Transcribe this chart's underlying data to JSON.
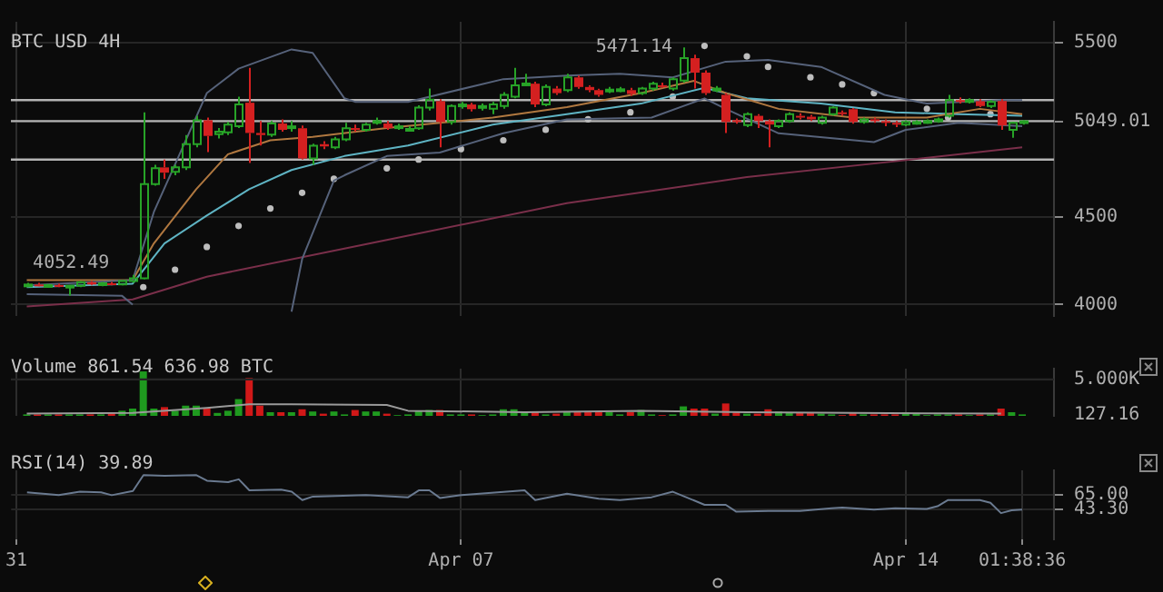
{
  "chart_data": [
    {
      "type": "candlestick",
      "title": "BTC USD 4H",
      "tick_labels": "y",
      "grid": true,
      "xlim": [
        "--03-30T22:00",
        "--04-16T08:00"
      ],
      "xticks": [
        {
          "value": "--03-31",
          "label": null
        },
        {
          "value": "--04-07",
          "label": null
        },
        {
          "value": "--04-14",
          "label": null
        }
      ],
      "ylim": [
        3935,
        5618
      ],
      "yticks": [
        4000,
        4500,
        5049.01,
        5500
      ],
      "x": [
        "--03-31T04:00",
        "--03-31T08:00",
        "--03-31T12:00",
        "--03-31T16:00",
        "--03-31T20:00",
        "--04-01T00:00",
        "--04-01T04:00",
        "--04-01T08:00",
        "--04-01T12:00",
        "--04-01T16:00",
        "--04-01T20:00",
        "--04-02T00:00",
        "--04-02T04:00",
        "--04-02T08:00",
        "--04-02T12:00",
        "--04-02T16:00",
        "--04-02T20:00",
        "--04-03T00:00",
        "--04-03T04:00",
        "--04-03T08:00",
        "--04-03T12:00",
        "--04-03T16:00",
        "--04-03T20:00",
        "--04-04T00:00",
        "--04-04T04:00",
        "--04-04T08:00",
        "--04-04T12:00",
        "--04-04T16:00",
        "--04-04T20:00",
        "--04-05T00:00",
        "--04-05T04:00",
        "--04-05T08:00",
        "--04-05T12:00",
        "--04-05T16:00",
        "--04-05T20:00",
        "--04-06T00:00",
        "--04-06T04:00",
        "--04-06T08:00",
        "--04-06T12:00",
        "--04-06T16:00",
        "--04-06T20:00",
        "--04-07T00:00",
        "--04-07T04:00",
        "--04-07T08:00",
        "--04-07T12:00",
        "--04-07T16:00",
        "--04-07T20:00",
        "--04-08T00:00",
        "--04-08T04:00",
        "--04-08T08:00",
        "--04-08T12:00",
        "--04-08T16:00",
        "--04-08T20:00",
        "--04-09T00:00",
        "--04-09T04:00",
        "--04-09T08:00",
        "--04-09T12:00",
        "--04-09T16:00",
        "--04-09T20:00",
        "--04-10T00:00",
        "--04-10T04:00",
        "--04-10T08:00",
        "--04-10T12:00",
        "--04-10T16:00",
        "--04-10T20:00",
        "--04-11T00:00",
        "--04-11T04:00",
        "--04-11T08:00",
        "--04-11T12:00",
        "--04-11T16:00",
        "--04-11T20:00",
        "--04-12T00:00",
        "--04-12T04:00",
        "--04-12T08:00",
        "--04-12T12:00",
        "--04-12T16:00",
        "--04-12T20:00",
        "--04-13T00:00",
        "--04-13T04:00",
        "--04-13T08:00",
        "--04-13T12:00",
        "--04-13T16:00",
        "--04-13T20:00",
        "--04-14T00:00",
        "--04-14T04:00",
        "--04-14T08:00",
        "--04-14T12:00",
        "--04-14T16:00",
        "--04-14T20:00",
        "--04-15T00:00",
        "--04-15T04:00",
        "--04-15T08:00",
        "--04-15T12:00",
        "--04-15T16:00",
        "--04-15T20:00"
      ],
      "ohlc": [
        [
          4110,
          4125,
          4100,
          4115
        ],
        [
          4115,
          4125,
          4105,
          4108
        ],
        [
          4108,
          4118,
          4098,
          4112
        ],
        [
          4112,
          4120,
          4100,
          4104
        ],
        [
          4104,
          4112,
          4052.49,
          4108
        ],
        [
          4108,
          4135,
          4100,
          4128
        ],
        [
          4128,
          4135,
          4110,
          4115
        ],
        [
          4115,
          4130,
          4105,
          4122
        ],
        [
          4122,
          4130,
          4110,
          4116
        ],
        [
          4116,
          4140,
          4110,
          4135
        ],
        [
          4135,
          4170,
          4125,
          4150
        ],
        [
          4150,
          5100,
          4145,
          4690
        ],
        [
          4690,
          4800,
          4680,
          4780
        ],
        [
          4785,
          4830,
          4720,
          4755
        ],
        [
          4760,
          4800,
          4740,
          4785
        ],
        [
          4785,
          4970,
          4770,
          4918
        ],
        [
          4918,
          5080,
          4900,
          5055
        ],
        [
          5055,
          5070,
          4873,
          4965
        ],
        [
          4975,
          5010,
          4950,
          4990
        ],
        [
          4985,
          5045,
          4970,
          5030
        ],
        [
          5020,
          5190,
          5010,
          5145
        ],
        [
          5155,
          5355,
          4810,
          4982
        ],
        [
          4982,
          5050,
          4910,
          4970
        ],
        [
          4973,
          5050,
          4960,
          5036
        ],
        [
          5036,
          5060,
          4990,
          5000
        ],
        [
          5015,
          5050,
          4990,
          5020
        ],
        [
          5009,
          5025,
          4830,
          4836
        ],
        [
          4836,
          4920,
          4800,
          4909
        ],
        [
          4918,
          4935,
          4890,
          4905
        ],
        [
          4900,
          4960,
          4890,
          4945
        ],
        [
          4945,
          5040,
          4935,
          5009
        ],
        [
          5010,
          5030,
          4990,
          5000
        ],
        [
          5000,
          5040,
          4990,
          5030
        ],
        [
          5045,
          5070,
          5030,
          5050
        ],
        [
          5036,
          5050,
          5000,
          5010
        ],
        [
          5010,
          5035,
          5000,
          5020
        ],
        [
          5000,
          5020,
          4990,
          5005
        ],
        [
          5009,
          5140,
          5000,
          5127
        ],
        [
          5127,
          5236,
          5110,
          5173
        ],
        [
          5164,
          5175,
          4900,
          5045
        ],
        [
          5045,
          5145,
          5030,
          5136
        ],
        [
          5135,
          5160,
          5120,
          5145
        ],
        [
          5145,
          5155,
          5105,
          5118
        ],
        [
          5130,
          5150,
          5110,
          5136
        ],
        [
          5120,
          5160,
          5090,
          5145
        ],
        [
          5136,
          5215,
          5120,
          5200
        ],
        [
          5190,
          5355,
          5180,
          5255
        ],
        [
          5260,
          5320,
          5250,
          5265
        ],
        [
          5264,
          5275,
          5130,
          5145
        ],
        [
          5145,
          5260,
          5135,
          5245
        ],
        [
          5236,
          5250,
          5200,
          5210
        ],
        [
          5227,
          5320,
          5215,
          5300
        ],
        [
          5300,
          5310,
          5235,
          5245
        ],
        [
          5245,
          5255,
          5215,
          5227
        ],
        [
          5227,
          5235,
          5190,
          5200
        ],
        [
          5225,
          5245,
          5210,
          5230
        ],
        [
          5228,
          5245,
          5215,
          5232
        ],
        [
          5227,
          5240,
          5195,
          5205
        ],
        [
          5210,
          5245,
          5200,
          5236
        ],
        [
          5236,
          5275,
          5225,
          5264
        ],
        [
          5255,
          5270,
          5240,
          5250
        ],
        [
          5236,
          5300,
          5225,
          5290
        ],
        [
          5282,
          5471.14,
          5270,
          5410
        ],
        [
          5410,
          5430,
          5236,
          5327
        ],
        [
          5327,
          5340,
          5200,
          5210
        ],
        [
          5230,
          5250,
          5215,
          5236
        ],
        [
          5200,
          5210,
          4982,
          5045
        ],
        [
          5055,
          5065,
          5035,
          5050
        ],
        [
          5027,
          5100,
          5015,
          5090
        ],
        [
          5080,
          5090,
          5010,
          5050
        ],
        [
          5050,
          5060,
          4900,
          5030
        ],
        [
          5020,
          5060,
          5010,
          5050
        ],
        [
          5050,
          5100,
          5040,
          5090
        ],
        [
          5080,
          5095,
          5060,
          5070
        ],
        [
          5075,
          5085,
          5050,
          5060
        ],
        [
          5040,
          5080,
          5030,
          5070
        ],
        [
          5090,
          5135,
          5080,
          5127
        ],
        [
          5100,
          5110,
          5080,
          5090
        ],
        [
          5118,
          5125,
          5035,
          5045
        ],
        [
          5045,
          5070,
          5035,
          5060
        ],
        [
          5060,
          5070,
          5040,
          5050
        ],
        [
          5050,
          5060,
          5020,
          5040
        ],
        [
          5040,
          5050,
          5015,
          5030
        ],
        [
          5030,
          5055,
          5020,
          5045
        ],
        [
          5040,
          5055,
          5030,
          5045
        ],
        [
          5045,
          5060,
          5035,
          5050
        ],
        [
          5050,
          5070,
          5040,
          5060
        ],
        [
          5080,
          5200,
          5070,
          5170
        ],
        [
          5170,
          5185,
          5150,
          5160
        ],
        [
          5165,
          5180,
          5150,
          5170
        ],
        [
          5164,
          5175,
          5130,
          5136
        ],
        [
          5136,
          5170,
          5125,
          5160
        ],
        [
          5165,
          5175,
          5000,
          5025
        ],
        [
          5000,
          5045,
          4955,
          5040
        ],
        [
          5040,
          5055,
          5030,
          5049.01
        ]
      ],
      "series": [
        {
          "type": "line",
          "color": "#56627a",
          "x": [
            "--03-31T04:00",
            "--04-01T20:00",
            "--04-02T04:00",
            "--04-03T00:00",
            "--04-03T12:00",
            "--04-04T08:00",
            "--04-04T16:00",
            "--04-05T04:00",
            "--04-05T08:00",
            "--04-06T04:00",
            "--04-07T16:00",
            "--04-08T16:00",
            "--04-09T12:00",
            "--04-10T08:00",
            "--04-11T04:00",
            "--04-11T20:00",
            "--04-12T16:00",
            "--04-13T16:00",
            "--04-14T08:00",
            "--04-15T12:00",
            "--04-15T20:00"
          ],
          "values": [
            4110,
            4140,
            4530,
            5210,
            5350,
            5460,
            5440,
            5180,
            5160,
            5160,
            5290,
            5310,
            5320,
            5300,
            5390,
            5400,
            5360,
            5200,
            5150,
            5170,
            5170
          ]
        },
        {
          "type": "line",
          "color": "#56627a",
          "x": [
            "--03-31T04:00",
            "--04-01T16:00",
            "--04-01T20:00",
            "--04-02T00:00",
            "--04-04T08:00",
            "--04-04T12:00",
            "--04-05T00:00",
            "--04-05T04:00",
            "--04-05T20:00",
            "--04-06T16:00",
            "--04-07T16:00",
            "--04-08T16:00",
            "--04-10T00:00",
            "--04-10T20:00",
            "--04-11T04:00",
            "--04-12T00:00",
            "--04-13T12:00",
            "--04-14T00:00",
            "--04-14T20:00",
            "--04-15T20:00"
          ],
          "values": [
            4060,
            4050,
            4000,
            null,
            3960,
            4260,
            4710,
            4740,
            4850,
            4870,
            4980,
            5060,
            5070,
            5180,
            5120,
            4980,
            4930,
            5000,
            5040,
            5020
          ]
        },
        {
          "type": "line",
          "color": "#b07840",
          "x": [
            "--03-31T04:00",
            "--04-01T20:00",
            "--04-02T04:00",
            "--04-02T20:00",
            "--04-03T08:00",
            "--04-04T00:00",
            "--04-04T16:00",
            "--04-05T20:00",
            "--04-07T12:00",
            "--04-08T16:00",
            "--04-09T20:00",
            "--04-10T16:00",
            "--04-11T04:00",
            "--04-12T00:00",
            "--04-13T04:00",
            "--04-14T08:00",
            "--04-15T04:00",
            "--04-15T20:00"
          ],
          "values": [
            4140,
            4140,
            4350,
            4660,
            4860,
            4940,
            4960,
            5010,
            5070,
            5130,
            5210,
            5280,
            5210,
            5120,
            5070,
            5070,
            5120,
            5090
          ]
        },
        {
          "type": "line",
          "color": "#5fb4c4",
          "x": [
            "--03-31T04:00",
            "--04-01T20:00",
            "--04-02T08:00",
            "--04-03T00:00",
            "--04-03T16:00",
            "--04-04T08:00",
            "--04-05T04:00",
            "--04-06T04:00",
            "--04-07T12:00",
            "--04-08T16:00",
            "--04-09T20:00",
            "--04-10T20:00",
            "--04-11T12:00",
            "--04-12T16:00",
            "--04-13T20:00",
            "--04-14T20:00",
            "--04-15T20:00"
          ],
          "values": [
            4100,
            4120,
            4350,
            4510,
            4660,
            4770,
            4850,
            4910,
            5030,
            5090,
            5150,
            5240,
            5180,
            5150,
            5100,
            5090,
            5080
          ]
        },
        {
          "type": "line",
          "color": "#7a2f4a",
          "x": [
            "--03-31T04:00",
            "--04-01T20:00",
            "--04-03T00:00",
            "--04-05T20:00",
            "--04-08T16:00",
            "--04-11T12:00",
            "--04-13T20:00",
            "--04-15T20:00"
          ],
          "values": [
            3990,
            4030,
            4160,
            4370,
            4580,
            4730,
            4820,
            4900
          ]
        },
        {
          "type": "scatter",
          "color": "#bdbdbd",
          "marker": "circle",
          "x": [
            "--04-02T00:00",
            "--04-02T12:00",
            "--04-03T00:00",
            "--04-03T12:00",
            "--04-04T00:00",
            "--04-04T12:00",
            "--04-05T00:00",
            "--04-05T20:00",
            "--04-06T08:00",
            "--04-07T00:00",
            "--04-07T16:00",
            "--04-08T08:00",
            "--04-09T00:00",
            "--04-09T16:00",
            "--04-10T08:00",
            "--04-10T20:00",
            "--04-11T12:00",
            "--04-11T20:00",
            "--04-12T12:00",
            "--04-13T00:00",
            "--04-13T12:00",
            "--04-14T08:00",
            "--04-14T16:00",
            "--04-15T08:00"
          ],
          "values": [
            4100,
            4200,
            4330,
            4450,
            4550,
            4640,
            4720,
            4780,
            4830,
            4890,
            4940,
            5000,
            5060,
            5100,
            5190,
            5480,
            5420,
            5360,
            5300,
            5260,
            5210,
            5120,
            5070,
            5090
          ]
        }
      ],
      "ref_lines": [
        {
          "axis": "y",
          "value": 5170,
          "color": "#b4b4b4"
        },
        {
          "axis": "y",
          "value": 5050,
          "color": "#b4b4b4"
        },
        {
          "axis": "y",
          "value": 4830,
          "color": "#b4b4b4"
        }
      ],
      "annotations": [
        {
          "text": "4052.49",
          "x": "--03-31T20:00",
          "y": 4052.49
        },
        {
          "text": "5471.14",
          "x": "--04-10T12:00",
          "y": 5471.14
        }
      ]
    },
    {
      "type": "bar",
      "title": "Volume 861.54 636.98 BTC",
      "tick_labels": "y",
      "grid": "x",
      "ref_lines": [
        {
          "axis": "y",
          "value": 5000,
          "color": "#262626"
        }
      ],
      "xlim": [
        "--03-30T22:00",
        "--04-16T08:00"
      ],
      "xticks": [
        {
          "value": "--03-31",
          "label": null
        },
        {
          "value": "--04-07",
          "label": null
        },
        {
          "value": "--04-14",
          "label": null
        }
      ],
      "ylim": [
        0,
        6480
      ],
      "yticks": [
        127.16,
        {
          "value": 5000,
          "label": "5.000K"
        }
      ],
      "x": [
        "--03-31T04:00",
        "--03-31T08:00",
        "--03-31T12:00",
        "--03-31T16:00",
        "--03-31T20:00",
        "--04-01T00:00",
        "--04-01T04:00",
        "--04-01T08:00",
        "--04-01T12:00",
        "--04-01T16:00",
        "--04-01T20:00",
        "--04-02T00:00",
        "--04-02T04:00",
        "--04-02T08:00",
        "--04-02T12:00",
        "--04-02T16:00",
        "--04-02T20:00",
        "--04-03T00:00",
        "--04-03T04:00",
        "--04-03T08:00",
        "--04-03T12:00",
        "--04-03T16:00",
        "--04-03T20:00",
        "--04-04T00:00",
        "--04-04T04:00",
        "--04-04T08:00",
        "--04-04T12:00",
        "--04-04T16:00",
        "--04-04T20:00",
        "--04-05T00:00",
        "--04-05T04:00",
        "--04-05T08:00",
        "--04-05T12:00",
        "--04-05T16:00",
        "--04-05T20:00",
        "--04-06T00:00",
        "--04-06T04:00",
        "--04-06T08:00",
        "--04-06T12:00",
        "--04-06T16:00",
        "--04-06T20:00",
        "--04-07T00:00",
        "--04-07T04:00",
        "--04-07T08:00",
        "--04-07T12:00",
        "--04-07T16:00",
        "--04-07T20:00",
        "--04-08T00:00",
        "--04-08T04:00",
        "--04-08T08:00",
        "--04-08T12:00",
        "--04-08T16:00",
        "--04-08T20:00",
        "--04-09T00:00",
        "--04-09T04:00",
        "--04-09T08:00",
        "--04-09T12:00",
        "--04-09T16:00",
        "--04-09T20:00",
        "--04-10T00:00",
        "--04-10T04:00",
        "--04-10T08:00",
        "--04-10T12:00",
        "--04-10T16:00",
        "--04-10T20:00",
        "--04-11T00:00",
        "--04-11T04:00",
        "--04-11T08:00",
        "--04-11T12:00",
        "--04-11T16:00",
        "--04-11T20:00",
        "--04-12T00:00",
        "--04-12T04:00",
        "--04-12T08:00",
        "--04-12T12:00",
        "--04-12T16:00",
        "--04-12T20:00",
        "--04-13T00:00",
        "--04-13T04:00",
        "--04-13T08:00",
        "--04-13T12:00",
        "--04-13T16:00",
        "--04-13T20:00",
        "--04-14T00:00",
        "--04-14T04:00",
        "--04-14T08:00",
        "--04-14T12:00",
        "--04-14T16:00",
        "--04-14T20:00",
        "--04-15T00:00",
        "--04-15T04:00",
        "--04-15T08:00",
        "--04-15T12:00",
        "--04-15T16:00",
        "--04-15T20:00"
      ],
      "series": [
        {
          "type": "bar",
          "values": [
            200,
            200,
            200,
            200,
            200,
            200,
            200,
            200,
            500,
            700,
            1000,
            6100,
            1000,
            1200,
            700,
            1400,
            1400,
            1100,
            400,
            700,
            2300,
            5200,
            1400,
            500,
            500,
            500,
            900,
            600,
            300,
            600,
            200,
            800,
            600,
            600,
            300,
            100,
            200,
            700,
            800,
            800,
            200,
            200,
            200,
            100,
            200,
            900,
            900,
            600,
            500,
            200,
            300,
            600,
            600,
            600,
            500,
            500,
            200,
            500,
            800,
            200,
            100,
            200,
            1300,
            1000,
            1000,
            300,
            1700,
            600,
            300,
            300,
            900,
            600,
            500,
            500,
            500,
            300,
            200,
            100,
            500,
            200,
            200,
            200,
            200,
            500,
            300,
            100,
            200,
            200,
            200,
            100,
            200,
            200,
            1000,
            500,
            200
          ],
          "colors": [
            "#1f9a1f",
            "#d01818",
            "#1f9a1f",
            "#d01818",
            "#1f9a1f",
            "#1f9a1f",
            "#d01818",
            "#1f9a1f",
            "#d01818",
            "#1f9a1f",
            "#1f9a1f",
            "#1f9a1f",
            "#1f9a1f",
            "#d01818",
            "#1f9a1f",
            "#1f9a1f",
            "#1f9a1f",
            "#d01818",
            "#1f9a1f",
            "#1f9a1f",
            "#1f9a1f",
            "#d01818",
            "#d01818",
            "#1f9a1f",
            "#d01818",
            "#1f9a1f",
            "#d01818",
            "#1f9a1f",
            "#d01818",
            "#1f9a1f",
            "#1f9a1f",
            "#d01818",
            "#1f9a1f",
            "#1f9a1f",
            "#d01818",
            "#1f9a1f",
            "#1f9a1f",
            "#1f9a1f",
            "#1f9a1f",
            "#d01818",
            "#1f9a1f",
            "#1f9a1f",
            "#d01818",
            "#1f9a1f",
            "#1f9a1f",
            "#1f9a1f",
            "#1f9a1f",
            "#1f9a1f",
            "#d01818",
            "#1f9a1f",
            "#d01818",
            "#1f9a1f",
            "#d01818",
            "#d01818",
            "#d01818",
            "#1f9a1f",
            "#1f9a1f",
            "#d01818",
            "#1f9a1f",
            "#1f9a1f",
            "#d01818",
            "#1f9a1f",
            "#1f9a1f",
            "#d01818",
            "#d01818",
            "#1f9a1f",
            "#d01818",
            "#d01818",
            "#1f9a1f",
            "#d01818",
            "#d01818",
            "#1f9a1f",
            "#1f9a1f",
            "#d01818",
            "#d01818",
            "#1f9a1f",
            "#1f9a1f",
            "#d01818",
            "#d01818",
            "#1f9a1f",
            "#d01818",
            "#d01818",
            "#d01818",
            "#1f9a1f",
            "#1f9a1f",
            "#1f9a1f",
            "#1f9a1f",
            "#1f9a1f",
            "#d01818",
            "#1f9a1f",
            "#d01818",
            "#1f9a1f",
            "#d01818",
            "#1f9a1f",
            "#1f9a1f"
          ]
        },
        {
          "type": "line",
          "color": "#9a9a9a",
          "x": [
            "--03-31T04:00",
            "--04-01T20:00",
            "--04-03T00:00",
            "--04-03T16:00",
            "--04-04T08:00",
            "--04-05T20:00",
            "--04-06T04:00",
            "--04-08T00:00",
            "--04-09T20:00",
            "--04-11T12:00",
            "--04-13T04:00",
            "--04-15T12:00"
          ],
          "values": [
            300,
            400,
            1100,
            1600,
            1600,
            1500,
            700,
            500,
            700,
            500,
            400,
            300
          ]
        }
      ]
    },
    {
      "type": "line",
      "title": "RSI(14) 39.89",
      "grid": true,
      "color": "#6a7a90",
      "xlim": [
        "--03-30T22:00",
        "--04-16T08:00"
      ],
      "xticks": [
        {
          "value": "--03-31",
          "label": "31"
        },
        {
          "value": "--04-07",
          "label": "Apr 07"
        },
        {
          "value": "--04-14",
          "label": "Apr 14"
        },
        {
          "value": "--04-15T20:00",
          "label": "01:38:36"
        }
      ],
      "ylim": [
        0,
        100
      ],
      "yticks": [
        {
          "value": 43.3,
          "label": "43.30"
        },
        {
          "value": 65,
          "label": "65.00"
        }
      ],
      "x": [
        "--03-31T04:00",
        "--03-31T16:00",
        "--04-01T00:00",
        "--04-01T08:00",
        "--04-01T12:00",
        "--04-01T20:00",
        "--04-02T00:00",
        "--04-02T08:00",
        "--04-02T20:00",
        "--04-03T00:00",
        "--04-03T08:00",
        "--04-03T12:00",
        "--04-03T16:00",
        "--04-04T04:00",
        "--04-04T08:00",
        "--04-04T12:00",
        "--04-04T16:00",
        "--04-05T12:00",
        "--04-06T04:00",
        "--04-06T08:00",
        "--04-06T12:00",
        "--04-06T16:00",
        "--04-07T00:00",
        "--04-08T00:00",
        "--04-08T04:00",
        "--04-08T16:00",
        "--04-09T04:00",
        "--04-09T12:00",
        "--04-10T00:00",
        "--04-10T08:00",
        "--04-10T20:00",
        "--04-11T04:00",
        "--04-11T08:00",
        "--04-11T20:00",
        "--04-12T08:00",
        "--04-12T20:00",
        "--04-13T00:00",
        "--04-13T12:00",
        "--04-13T20:00",
        "--04-14T08:00",
        "--04-14T12:00",
        "--04-14T16:00",
        "--04-15T04:00",
        "--04-15T08:00",
        "--04-15T12:00",
        "--04-15T16:00",
        "--04-15T20:00"
      ],
      "values": [
        68,
        64,
        69,
        68,
        64,
        70,
        93,
        92,
        93,
        85,
        83,
        87,
        71,
        72,
        69,
        57,
        62,
        64,
        61,
        71,
        71,
        60,
        64,
        71,
        57,
        66,
        59,
        57,
        61,
        69,
        50,
        50,
        40,
        41,
        41,
        45,
        46,
        43,
        45,
        44,
        48,
        57,
        57,
        53,
        38,
        42,
        43
      ]
    }
  ]
}
